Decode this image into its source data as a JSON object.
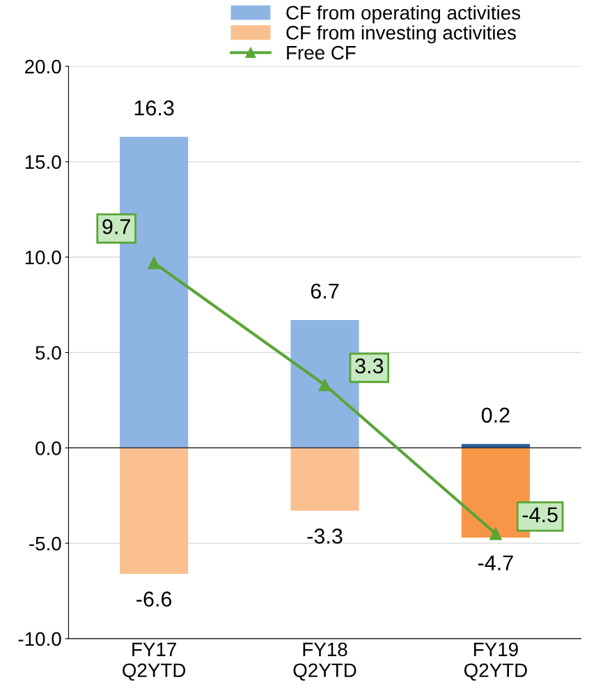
{
  "chart_data": {
    "type": "bar",
    "categories": [
      "FY17\nQ2YTD",
      "FY18\nQ2YTD",
      "FY19\nQ2YTD"
    ],
    "series": [
      {
        "name": "CF from operating activities",
        "color": "#8eb4e3",
        "colors": [
          "#8eb4e3",
          "#8eb4e3",
          "#2e5c9a"
        ],
        "values": [
          16.3,
          6.7,
          0.2
        ]
      },
      {
        "name": "CF from investing activities",
        "color": "#fac090",
        "colors": [
          "#fac090",
          "#fac090",
          "#f79646"
        ],
        "values": [
          -6.6,
          -3.3,
          -4.7
        ]
      },
      {
        "name": "Free CF",
        "type": "line",
        "color": "#5aa537",
        "values": [
          9.7,
          3.3,
          -4.5
        ]
      }
    ],
    "ylim": [
      -10,
      20
    ],
    "yticks": [
      {
        "value": -10,
        "label": "-10.0"
      },
      {
        "value": -5,
        "label": "-5.0"
      },
      {
        "value": 0,
        "label": "0.0"
      },
      {
        "value": 5,
        "label": "5.0"
      },
      {
        "value": 10,
        "label": "10.0"
      },
      {
        "value": 15,
        "label": "15.0"
      },
      {
        "value": 20,
        "label": "20.0"
      }
    ],
    "stacked": true,
    "data_labels": true,
    "marker": "triangle",
    "legend": "top",
    "grid": "y"
  }
}
